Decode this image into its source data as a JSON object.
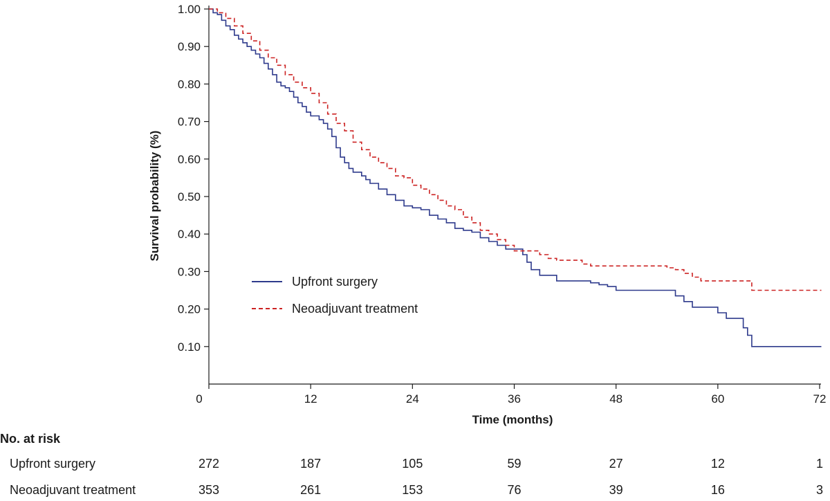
{
  "chart_data": {
    "type": "line",
    "subtype": "kaplan-meier",
    "title": "",
    "xlabel": "Time (months)",
    "ylabel": "Survival probability (%)",
    "xlim": [
      0,
      72
    ],
    "ylim": [
      0,
      1.0
    ],
    "x_ticks": [
      0,
      12,
      24,
      36,
      48,
      60,
      72
    ],
    "x_tick_labels": [
      "0",
      "12",
      "24",
      "36",
      "48",
      "60",
      "72"
    ],
    "y_ticks": [
      0.1,
      0.2,
      0.3,
      0.4,
      0.5,
      0.6,
      0.7,
      0.8,
      0.9,
      1.0
    ],
    "y_tick_labels": [
      "0.10",
      "0.20",
      "0.30",
      "0.40",
      "0.50",
      "0.60",
      "0.70",
      "0.80",
      "0.90",
      "1.00"
    ],
    "grid": false,
    "legend_position": "middle-left",
    "series": [
      {
        "name": "Upfront surgery",
        "color": "#2e3a8c",
        "style": "solid",
        "points": [
          [
            0,
            1.0
          ],
          [
            0.5,
            0.99
          ],
          [
            1,
            0.985
          ],
          [
            1.5,
            0.97
          ],
          [
            2,
            0.955
          ],
          [
            2.5,
            0.945
          ],
          [
            3,
            0.93
          ],
          [
            3.5,
            0.92
          ],
          [
            4,
            0.91
          ],
          [
            4.5,
            0.9
          ],
          [
            5,
            0.89
          ],
          [
            5.5,
            0.88
          ],
          [
            6,
            0.87
          ],
          [
            6.5,
            0.855
          ],
          [
            7,
            0.84
          ],
          [
            7.5,
            0.825
          ],
          [
            8,
            0.805
          ],
          [
            8.5,
            0.795
          ],
          [
            9,
            0.79
          ],
          [
            9.5,
            0.78
          ],
          [
            10,
            0.765
          ],
          [
            10.5,
            0.75
          ],
          [
            11,
            0.74
          ],
          [
            11.5,
            0.725
          ],
          [
            12,
            0.715
          ],
          [
            12.5,
            0.715
          ],
          [
            13,
            0.705
          ],
          [
            13.5,
            0.695
          ],
          [
            14,
            0.68
          ],
          [
            14.5,
            0.66
          ],
          [
            15,
            0.63
          ],
          [
            15.5,
            0.605
          ],
          [
            16,
            0.59
          ],
          [
            16.5,
            0.575
          ],
          [
            17,
            0.565
          ],
          [
            18,
            0.555
          ],
          [
            18.5,
            0.545
          ],
          [
            19,
            0.535
          ],
          [
            20,
            0.52
          ],
          [
            21,
            0.505
          ],
          [
            22,
            0.49
          ],
          [
            23,
            0.475
          ],
          [
            24,
            0.47
          ],
          [
            25,
            0.465
          ],
          [
            26,
            0.45
          ],
          [
            27,
            0.44
          ],
          [
            28,
            0.43
          ],
          [
            29,
            0.415
          ],
          [
            30,
            0.41
          ],
          [
            31,
            0.405
          ],
          [
            32,
            0.39
          ],
          [
            33,
            0.38
          ],
          [
            34,
            0.37
          ],
          [
            35,
            0.36
          ],
          [
            36,
            0.36
          ],
          [
            37,
            0.345
          ],
          [
            37.5,
            0.325
          ],
          [
            38,
            0.305
          ],
          [
            39,
            0.29
          ],
          [
            40,
            0.29
          ],
          [
            41,
            0.275
          ],
          [
            43,
            0.275
          ],
          [
            44,
            0.275
          ],
          [
            45,
            0.27
          ],
          [
            46,
            0.265
          ],
          [
            47,
            0.26
          ],
          [
            48,
            0.25
          ],
          [
            50,
            0.25
          ],
          [
            52,
            0.25
          ],
          [
            54,
            0.25
          ],
          [
            55,
            0.235
          ],
          [
            56,
            0.22
          ],
          [
            57,
            0.205
          ],
          [
            58,
            0.205
          ],
          [
            59,
            0.205
          ],
          [
            60,
            0.19
          ],
          [
            61,
            0.175
          ],
          [
            62,
            0.175
          ],
          [
            63,
            0.15
          ],
          [
            63.5,
            0.13
          ],
          [
            64,
            0.1
          ],
          [
            66,
            0.1
          ],
          [
            70,
            0.1
          ],
          [
            72.2,
            0.1
          ]
        ]
      },
      {
        "name": "Neoadjuvant treatment",
        "color": "#cc2222",
        "style": "dashed",
        "points": [
          [
            0,
            1.0
          ],
          [
            1,
            0.99
          ],
          [
            2,
            0.975
          ],
          [
            3,
            0.955
          ],
          [
            4,
            0.935
          ],
          [
            5,
            0.915
          ],
          [
            6,
            0.89
          ],
          [
            7,
            0.87
          ],
          [
            8,
            0.85
          ],
          [
            9,
            0.825
          ],
          [
            10,
            0.805
          ],
          [
            11,
            0.79
          ],
          [
            12,
            0.775
          ],
          [
            13,
            0.75
          ],
          [
            14,
            0.72
          ],
          [
            15,
            0.695
          ],
          [
            16,
            0.675
          ],
          [
            17,
            0.645
          ],
          [
            18,
            0.625
          ],
          [
            19,
            0.605
          ],
          [
            20,
            0.59
          ],
          [
            21,
            0.575
          ],
          [
            22,
            0.555
          ],
          [
            23,
            0.55
          ],
          [
            24,
            0.53
          ],
          [
            25,
            0.52
          ],
          [
            26,
            0.505
          ],
          [
            27,
            0.49
          ],
          [
            28,
            0.475
          ],
          [
            29,
            0.465
          ],
          [
            30,
            0.445
          ],
          [
            31,
            0.43
          ],
          [
            32,
            0.41
          ],
          [
            33,
            0.4
          ],
          [
            34,
            0.385
          ],
          [
            35,
            0.37
          ],
          [
            36,
            0.355
          ],
          [
            38,
            0.355
          ],
          [
            39,
            0.345
          ],
          [
            40,
            0.335
          ],
          [
            41,
            0.33
          ],
          [
            43,
            0.33
          ],
          [
            44,
            0.32
          ],
          [
            45,
            0.315
          ],
          [
            46,
            0.315
          ],
          [
            48,
            0.315
          ],
          [
            50,
            0.315
          ],
          [
            52,
            0.315
          ],
          [
            54,
            0.31
          ],
          [
            55,
            0.305
          ],
          [
            56,
            0.295
          ],
          [
            57,
            0.285
          ],
          [
            58,
            0.275
          ],
          [
            60,
            0.275
          ],
          [
            62,
            0.275
          ],
          [
            63,
            0.275
          ],
          [
            64,
            0.25
          ],
          [
            66,
            0.25
          ],
          [
            70,
            0.25
          ],
          [
            72.2,
            0.25
          ]
        ]
      }
    ]
  },
  "risk_table": {
    "title": "No. at risk",
    "rows": [
      {
        "label": "Upfront surgery",
        "values": [
          "272",
          "187",
          "105",
          "59",
          "27",
          "12",
          "1"
        ]
      },
      {
        "label": "Neoadjuvant treatment",
        "values": [
          "353",
          "261",
          "153",
          "76",
          "39",
          "16",
          "3"
        ]
      }
    ]
  }
}
